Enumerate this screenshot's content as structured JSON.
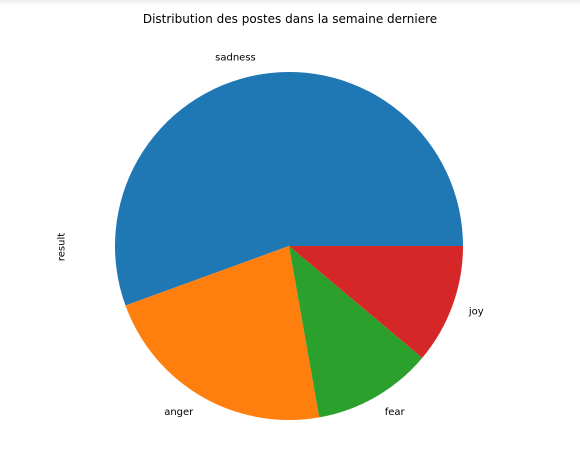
{
  "chart_data": {
    "type": "pie",
    "title": "Distribution des postes dans la semaine derniere",
    "ylabel": "result",
    "categories": [
      "sadness",
      "anger",
      "fear",
      "joy"
    ],
    "values": [
      5,
      2,
      1,
      1
    ],
    "colors": [
      "#1f77b4",
      "#ff7f0e",
      "#2ca02c",
      "#d62728"
    ],
    "start_angle": 0,
    "direction": "counterclockwise"
  }
}
